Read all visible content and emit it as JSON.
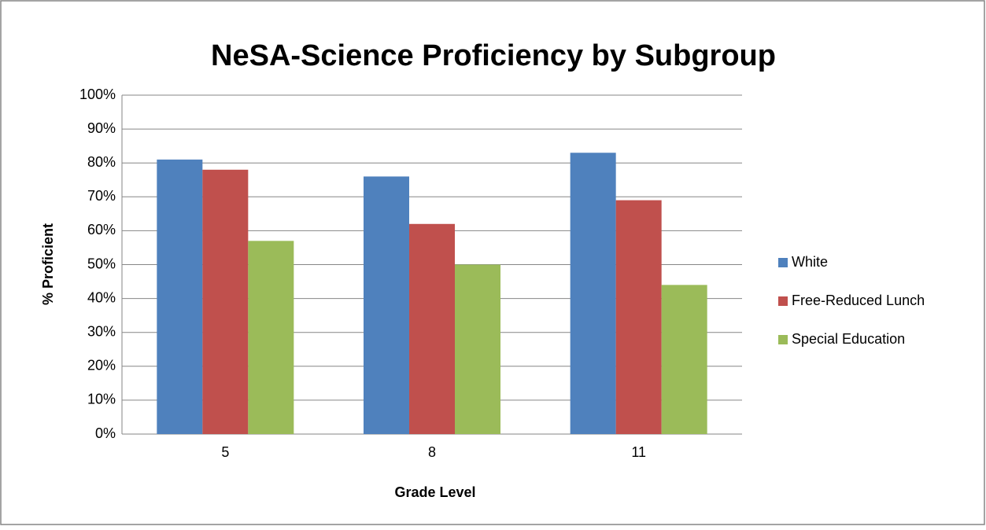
{
  "chart_data": {
    "type": "bar",
    "title": "NeSA-Science Proficiency by Subgroup",
    "x_label": "Grade Level",
    "y_label": "% Proficient",
    "categories": [
      "5",
      "8",
      "11"
    ],
    "series": [
      {
        "name": "White",
        "color": "#4f81bd",
        "values": [
          81,
          76,
          83
        ]
      },
      {
        "name": "Free-Reduced Lunch",
        "color": "#c0504d",
        "values": [
          78,
          62,
          69
        ]
      },
      {
        "name": "Special Education",
        "color": "#9bbb59",
        "values": [
          57,
          50,
          44
        ]
      }
    ],
    "ylim": [
      0,
      100
    ],
    "yticks": [
      {
        "value": 0,
        "label": "0%"
      },
      {
        "value": 10,
        "label": "10%"
      },
      {
        "value": 20,
        "label": "20%"
      },
      {
        "value": 30,
        "label": "30%"
      },
      {
        "value": 40,
        "label": "40%"
      },
      {
        "value": 50,
        "label": "50%"
      },
      {
        "value": 60,
        "label": "60%"
      },
      {
        "value": 70,
        "label": "70%"
      },
      {
        "value": 80,
        "label": "80%"
      },
      {
        "value": 90,
        "label": "90%"
      },
      {
        "value": 100,
        "label": "100%"
      }
    ],
    "grid": true,
    "legend": "right"
  }
}
